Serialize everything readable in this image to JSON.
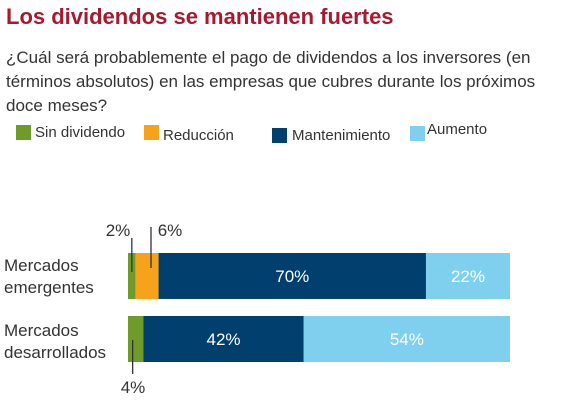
{
  "title": "Los dividendos se mantienen fuertes",
  "subtitle": "¿Cuál será probablemente el pago de dividendos a los inversores (en términos absolutos) en las empresas que cubres durante los próximos doce meses?",
  "colors": {
    "sin_dividendo": "#6e9b2a",
    "reduccion": "#f7a21b",
    "mantenimiento": "#003f6e",
    "aumento": "#7fd0ee"
  },
  "chart_data": {
    "type": "bar",
    "orientation": "horizontal",
    "stacked": true,
    "categories": [
      "Mercados emergentes",
      "Mercados desarrollados"
    ],
    "category_lines": [
      [
        "Mercados",
        "emergentes"
      ],
      [
        "Mercados",
        "desarrollados"
      ]
    ],
    "series": [
      {
        "name": "Sin dividendo",
        "values": [
          2,
          4
        ],
        "labels": [
          "2%",
          "4%"
        ]
      },
      {
        "name": "Reducción",
        "values": [
          6,
          0
        ],
        "labels": [
          "6%",
          ""
        ]
      },
      {
        "name": "Mantenimiento",
        "values": [
          70,
          42
        ],
        "labels": [
          "70%",
          "42%"
        ]
      },
      {
        "name": "Aumento",
        "values": [
          22,
          54
        ],
        "labels": [
          "22%",
          "54%"
        ]
      }
    ],
    "xlim": [
      0,
      100
    ],
    "legend_position": "top",
    "grid": false
  }
}
